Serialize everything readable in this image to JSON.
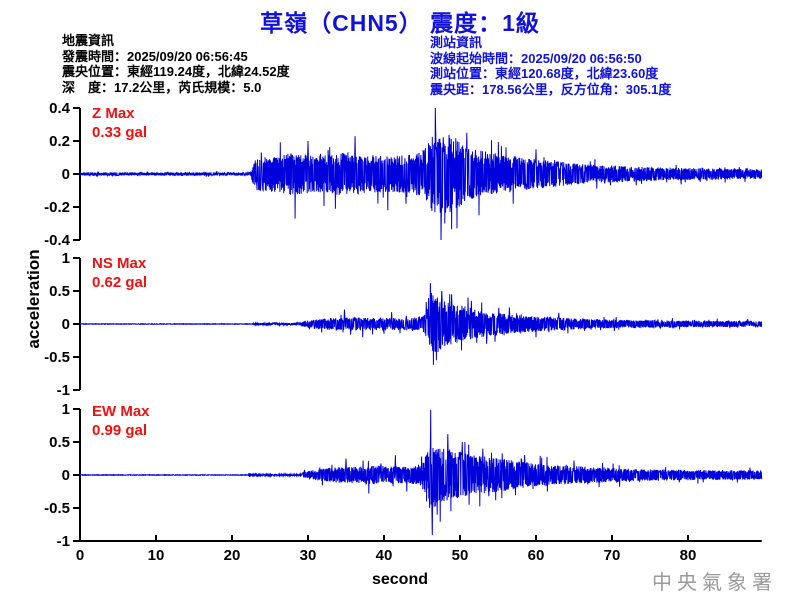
{
  "header": {
    "title": "草嶺（CHN5） 震度：1級"
  },
  "event_info": {
    "heading": "地震資訊",
    "lines": [
      "發震時間：2025/09/20 06:56:45",
      "震央位置：東經119.24度，北緯24.52度",
      "深　度：17.2公里，芮氏規模：5.0"
    ]
  },
  "station_info": {
    "heading": "測站資訊",
    "lines": [
      "波線起始時間：2025/09/20 06:56:50",
      "測站位置：東經120.68度，北緯23.60度",
      "震央距：178.56公里，反方位角：305.1度"
    ]
  },
  "footer": {
    "watermark": "中央氣象署"
  },
  "colors": {
    "trace": "#0000dd",
    "title_blue": "#1111dd",
    "annotation_red": "#ee1111",
    "axis": "#000000",
    "watermark_gray": "#9a9a9a"
  },
  "chart_data": {
    "type": "line",
    "title": "three-component seismogram",
    "xlabel": "second",
    "ylabel": "acceleration",
    "x_range": [
      0,
      89.7
    ],
    "xticks": [
      0,
      10,
      20,
      30,
      40,
      50,
      60,
      70,
      80
    ],
    "panels": [
      {
        "id": "Z",
        "label": "Z Max",
        "max_label": "0.33 gal",
        "max_gal": 0.33,
        "ylim": [
          -0.4,
          0.4
        ],
        "yticks": [
          0.4,
          0.2,
          0,
          -0.2,
          -0.4
        ],
        "seed": 11,
        "envelope": [
          [
            0,
            0.01
          ],
          [
            22.4,
            0.01
          ],
          [
            22.7,
            0.05
          ],
          [
            23.2,
            0.1
          ],
          [
            26,
            0.11
          ],
          [
            28,
            0.13
          ],
          [
            31,
            0.11
          ],
          [
            34,
            0.13
          ],
          [
            37,
            0.12
          ],
          [
            40,
            0.11
          ],
          [
            44,
            0.12
          ],
          [
            45.5,
            0.16
          ],
          [
            46.3,
            0.24
          ],
          [
            47.5,
            0.26
          ],
          [
            49.5,
            0.22
          ],
          [
            51,
            0.16
          ],
          [
            54,
            0.13
          ],
          [
            58,
            0.1
          ],
          [
            62,
            0.08
          ],
          [
            66,
            0.06
          ],
          [
            71,
            0.05
          ],
          [
            76,
            0.04
          ],
          [
            82,
            0.035
          ],
          [
            89.7,
            0.03
          ]
        ],
        "spikes": [
          [
            28.3,
            -0.27
          ],
          [
            30.0,
            0.2
          ],
          [
            33.6,
            -0.21
          ],
          [
            36.2,
            0.23
          ],
          [
            40.5,
            -0.22
          ],
          [
            46.8,
            0.26
          ],
          [
            48.0,
            -0.3
          ],
          [
            49.6,
            -0.33
          ],
          [
            50.9,
            0.25
          ],
          [
            52.5,
            -0.25
          ],
          [
            57,
            -0.18
          ],
          [
            60,
            0.15
          ]
        ]
      },
      {
        "id": "NS",
        "label": "NS Max",
        "max_label": "0.62 gal",
        "max_gal": 0.62,
        "ylim": [
          -1,
          1
        ],
        "yticks": [
          1,
          0.5,
          0,
          -0.5,
          -1
        ],
        "seed": 23,
        "envelope": [
          [
            0,
            0.004
          ],
          [
            22.6,
            0.004
          ],
          [
            23,
            0.015
          ],
          [
            29,
            0.02
          ],
          [
            29.5,
            0.05
          ],
          [
            31,
            0.07
          ],
          [
            33,
            0.09
          ],
          [
            36,
            0.1
          ],
          [
            40,
            0.09
          ],
          [
            44,
            0.1
          ],
          [
            45.3,
            0.13
          ],
          [
            45.9,
            0.3
          ],
          [
            46.3,
            0.5
          ],
          [
            47,
            0.45
          ],
          [
            48,
            0.35
          ],
          [
            49,
            0.3
          ],
          [
            50.5,
            0.28
          ],
          [
            52,
            0.22
          ],
          [
            54,
            0.18
          ],
          [
            56,
            0.15
          ],
          [
            58,
            0.13
          ],
          [
            61,
            0.11
          ],
          [
            64,
            0.09
          ],
          [
            68,
            0.07
          ],
          [
            73,
            0.06
          ],
          [
            80,
            0.05
          ],
          [
            89.7,
            0.045
          ]
        ],
        "spikes": [
          [
            34.8,
            0.22
          ],
          [
            37.2,
            -0.2
          ],
          [
            41,
            0.18
          ],
          [
            46.1,
            0.62
          ],
          [
            46.5,
            -0.62
          ],
          [
            46.9,
            -0.55
          ],
          [
            47.6,
            0.5
          ],
          [
            48.9,
            0.45
          ],
          [
            50.2,
            -0.4
          ],
          [
            51.5,
            0.35
          ],
          [
            53.5,
            -0.3
          ],
          [
            56.5,
            0.25
          ],
          [
            60,
            -0.2
          ],
          [
            63,
            0.17
          ]
        ]
      },
      {
        "id": "EW",
        "label": "EW Max",
        "max_label": "0.99 gal",
        "max_gal": 0.99,
        "ylim": [
          -1,
          1
        ],
        "yticks": [
          1,
          0.5,
          0,
          -0.5,
          -1
        ],
        "seed": 37,
        "envelope": [
          [
            0,
            0.004
          ],
          [
            22.1,
            0.004
          ],
          [
            22.3,
            0.03
          ],
          [
            22.7,
            0.012
          ],
          [
            29,
            0.015
          ],
          [
            29.8,
            0.06
          ],
          [
            31,
            0.08
          ],
          [
            33,
            0.11
          ],
          [
            36,
            0.13
          ],
          [
            39,
            0.14
          ],
          [
            42,
            0.13
          ],
          [
            44.5,
            0.15
          ],
          [
            45.6,
            0.3
          ],
          [
            46.1,
            0.55
          ],
          [
            46.6,
            0.5
          ],
          [
            47.5,
            0.42
          ],
          [
            49,
            0.38
          ],
          [
            50.5,
            0.35
          ],
          [
            52,
            0.3
          ],
          [
            54,
            0.27
          ],
          [
            56,
            0.24
          ],
          [
            58,
            0.2
          ],
          [
            60,
            0.18
          ],
          [
            63,
            0.15
          ],
          [
            66,
            0.13
          ],
          [
            70,
            0.11
          ],
          [
            74,
            0.09
          ],
          [
            80,
            0.08
          ],
          [
            89.7,
            0.07
          ]
        ],
        "spikes": [
          [
            35,
            0.25
          ],
          [
            38,
            -0.28
          ],
          [
            41.5,
            0.3
          ],
          [
            43,
            -0.25
          ],
          [
            46.15,
            0.99
          ],
          [
            46.35,
            -0.91
          ],
          [
            47.0,
            -0.6
          ],
          [
            48.4,
            0.62
          ],
          [
            48.8,
            -0.55
          ],
          [
            50.3,
            0.5
          ],
          [
            51.2,
            -0.45
          ],
          [
            53,
            0.4
          ],
          [
            55.5,
            -0.35
          ],
          [
            58.5,
            0.3
          ],
          [
            61.5,
            -0.25
          ],
          [
            65,
            0.22
          ]
        ]
      }
    ]
  }
}
